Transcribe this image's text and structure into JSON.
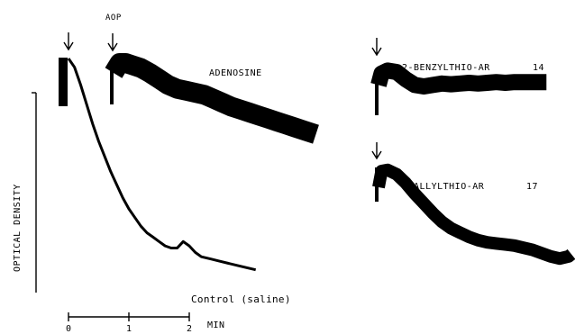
{
  "chart_data": {
    "type": "line",
    "ylabel": "OPTICAL DENSITY",
    "scale_bar": {
      "unit": "MIN",
      "ticks": [
        "0",
        "1",
        "2"
      ]
    },
    "markers": {
      "adp_label": "AOP"
    },
    "traces": [
      {
        "label": "ADENOSINE",
        "time_min": [
          0.0,
          0.1,
          0.2,
          0.3,
          0.45,
          0.6,
          0.75,
          0.9,
          1.05,
          1.2,
          1.35,
          1.5,
          1.65,
          1.8,
          1.95,
          2.1,
          2.25,
          2.4,
          2.55,
          2.7,
          2.85,
          3.0,
          3.15,
          3.35
        ],
        "od": [
          0.9,
          1.0,
          1.0,
          0.98,
          0.95,
          0.9,
          0.84,
          0.78,
          0.74,
          0.72,
          0.7,
          0.68,
          0.64,
          0.6,
          0.56,
          0.53,
          0.5,
          0.47,
          0.44,
          0.41,
          0.38,
          0.35,
          0.32,
          0.28
        ]
      },
      {
        "label": "2-BENZYLTHIO-AR",
        "id": "14",
        "time_min": [
          0.0,
          0.05,
          0.15,
          0.3,
          0.45,
          0.6,
          0.75,
          0.9,
          1.05,
          1.2,
          1.35,
          1.5,
          1.65,
          1.8,
          1.95,
          2.1,
          2.25,
          2.4,
          2.6,
          2.78
        ],
        "od": [
          0.72,
          0.88,
          0.92,
          0.9,
          0.8,
          0.72,
          0.7,
          0.72,
          0.74,
          0.73,
          0.74,
          0.75,
          0.74,
          0.75,
          0.76,
          0.75,
          0.76,
          0.76,
          0.76,
          0.76
        ]
      },
      {
        "label": "2-ALLYLTHIO-AR",
        "id": "17",
        "time_min": [
          0.0,
          0.05,
          0.15,
          0.3,
          0.45,
          0.6,
          0.75,
          0.9,
          1.05,
          1.2,
          1.35,
          1.5,
          1.65,
          1.8,
          1.95,
          2.1,
          2.25,
          2.4,
          2.55,
          2.7,
          2.85,
          3.0,
          3.15,
          3.3
        ],
        "od": [
          0.8,
          0.95,
          0.96,
          0.92,
          0.84,
          0.74,
          0.65,
          0.56,
          0.48,
          0.42,
          0.38,
          0.34,
          0.31,
          0.29,
          0.28,
          0.27,
          0.26,
          0.24,
          0.22,
          0.19,
          0.16,
          0.14,
          0.16,
          0.18
        ]
      },
      {
        "label": "Control (saline)",
        "time_min": [
          0.0,
          0.1,
          0.2,
          0.3,
          0.4,
          0.5,
          0.6,
          0.7,
          0.8,
          0.9,
          1.0,
          1.1,
          1.2,
          1.3,
          1.4,
          1.5,
          1.6,
          1.7,
          1.8,
          1.9,
          2.0,
          2.1,
          2.2,
          2.35,
          2.5,
          2.65,
          2.8,
          2.95,
          3.1
        ],
        "od": [
          1.0,
          0.96,
          0.88,
          0.79,
          0.7,
          0.62,
          0.55,
          0.48,
          0.42,
          0.36,
          0.31,
          0.27,
          0.23,
          0.2,
          0.18,
          0.16,
          0.14,
          0.13,
          0.13,
          0.16,
          0.14,
          0.11,
          0.09,
          0.08,
          0.07,
          0.06,
          0.05,
          0.04,
          0.03
        ]
      }
    ]
  }
}
